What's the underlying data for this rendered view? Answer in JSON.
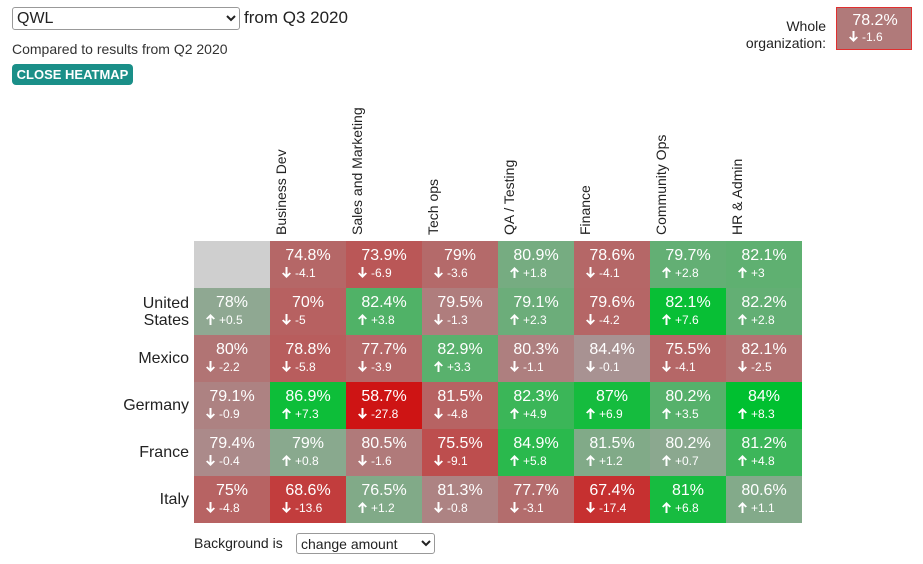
{
  "controls": {
    "metric_select": "QWL",
    "period": "from Q3 2020",
    "comparison": "Compared to results from Q2 2020",
    "close_button": "CLOSE HEATMAP",
    "background_label": "Background is",
    "background_select": "change amount"
  },
  "summary": {
    "label": "Whole organization:",
    "value": "78.2%",
    "change": "-1.6"
  },
  "table": {
    "columns": [
      "Business Dev",
      "Sales and Marketing",
      "Tech ops",
      "QA / Testing",
      "Finance",
      "Community Ops",
      "HR & Admin"
    ],
    "column_totals": [
      {
        "value": "74.8%",
        "change": "-4.1"
      },
      {
        "value": "73.9%",
        "change": "-6.9"
      },
      {
        "value": "79%",
        "change": "-3.6"
      },
      {
        "value": "80.9%",
        "change": "+1.8"
      },
      {
        "value": "78.6%",
        "change": "-4.1"
      },
      {
        "value": "79.7%",
        "change": "+2.8"
      },
      {
        "value": "82.1%",
        "change": "+3"
      }
    ],
    "rows": [
      {
        "label": "United States",
        "total": {
          "value": "78%",
          "change": "+0.5"
        },
        "cells": [
          {
            "value": "70%",
            "change": "-5"
          },
          {
            "value": "82.4%",
            "change": "+3.8"
          },
          {
            "value": "79.5%",
            "change": "-1.3"
          },
          {
            "value": "79.1%",
            "change": "+2.3"
          },
          {
            "value": "79.6%",
            "change": "-4.2"
          },
          {
            "value": "82.1%",
            "change": "+7.6"
          },
          {
            "value": "82.2%",
            "change": "+2.8"
          }
        ]
      },
      {
        "label": "Mexico",
        "total": {
          "value": "80%",
          "change": "-2.2"
        },
        "cells": [
          {
            "value": "78.8%",
            "change": "-5.8"
          },
          {
            "value": "77.7%",
            "change": "-3.9"
          },
          {
            "value": "82.9%",
            "change": "+3.3"
          },
          {
            "value": "80.3%",
            "change": "-1.1"
          },
          {
            "value": "84.4%",
            "change": "-0.1"
          },
          {
            "value": "75.5%",
            "change": "-4.1"
          },
          {
            "value": "82.1%",
            "change": "-2.5"
          }
        ]
      },
      {
        "label": "Germany",
        "total": {
          "value": "79.1%",
          "change": "-0.9"
        },
        "cells": [
          {
            "value": "86.9%",
            "change": "+7.3"
          },
          {
            "value": "58.7%",
            "change": "-27.8"
          },
          {
            "value": "81.5%",
            "change": "-4.8"
          },
          {
            "value": "82.3%",
            "change": "+4.9"
          },
          {
            "value": "87%",
            "change": "+6.9"
          },
          {
            "value": "80.2%",
            "change": "+3.5"
          },
          {
            "value": "84%",
            "change": "+8.3"
          }
        ]
      },
      {
        "label": "France",
        "total": {
          "value": "79.4%",
          "change": "-0.4"
        },
        "cells": [
          {
            "value": "79%",
            "change": "+0.8"
          },
          {
            "value": "80.5%",
            "change": "-1.6"
          },
          {
            "value": "75.5%",
            "change": "-9.1"
          },
          {
            "value": "84.9%",
            "change": "+5.8"
          },
          {
            "value": "81.5%",
            "change": "+1.2"
          },
          {
            "value": "80.2%",
            "change": "+0.7"
          },
          {
            "value": "81.2%",
            "change": "+4.8"
          }
        ]
      },
      {
        "label": "Italy",
        "total": {
          "value": "75%",
          "change": "-4.8"
        },
        "cells": [
          {
            "value": "68.6%",
            "change": "-13.6"
          },
          {
            "value": "76.5%",
            "change": "+1.2"
          },
          {
            "value": "81.3%",
            "change": "-0.8"
          },
          {
            "value": "77.7%",
            "change": "-3.1"
          },
          {
            "value": "67.4%",
            "change": "-17.4"
          },
          {
            "value": "81%",
            "change": "+6.8"
          },
          {
            "value": "80.6%",
            "change": "+1.1"
          }
        ]
      }
    ]
  }
}
